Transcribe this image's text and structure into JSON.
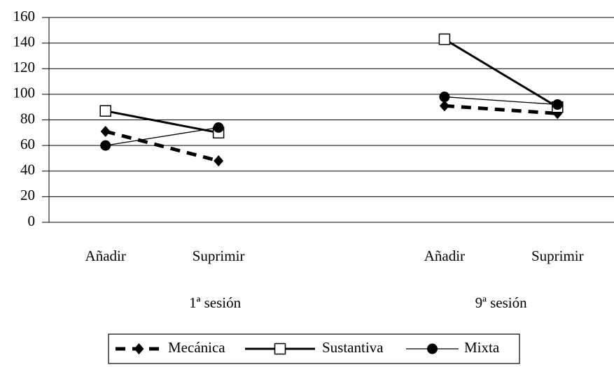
{
  "chart_data": {
    "type": "line",
    "categories": [
      "Añadir",
      "Suprimir",
      null,
      "Añadir",
      "Suprimir"
    ],
    "group_labels": [
      "1ª sesión",
      "9ª sesión"
    ],
    "series": [
      {
        "name": "Mecánica",
        "color": "#000000",
        "line_style": "dashed",
        "marker": "diamond",
        "values": [
          71,
          48,
          null,
          91,
          85
        ]
      },
      {
        "name": "Sustantiva",
        "color": "#000000",
        "line_style": "solid",
        "marker": "square",
        "values": [
          87,
          70,
          null,
          143,
          90
        ]
      },
      {
        "name": "Mixta",
        "color": "#000000",
        "line_style": "thin",
        "marker": "circle",
        "values": [
          60,
          74,
          null,
          98,
          92
        ]
      }
    ],
    "ylim": [
      0,
      160
    ],
    "yticks": [
      0,
      20,
      40,
      60,
      80,
      100,
      120,
      140,
      160
    ],
    "grid": true,
    "legend": "bottom"
  }
}
